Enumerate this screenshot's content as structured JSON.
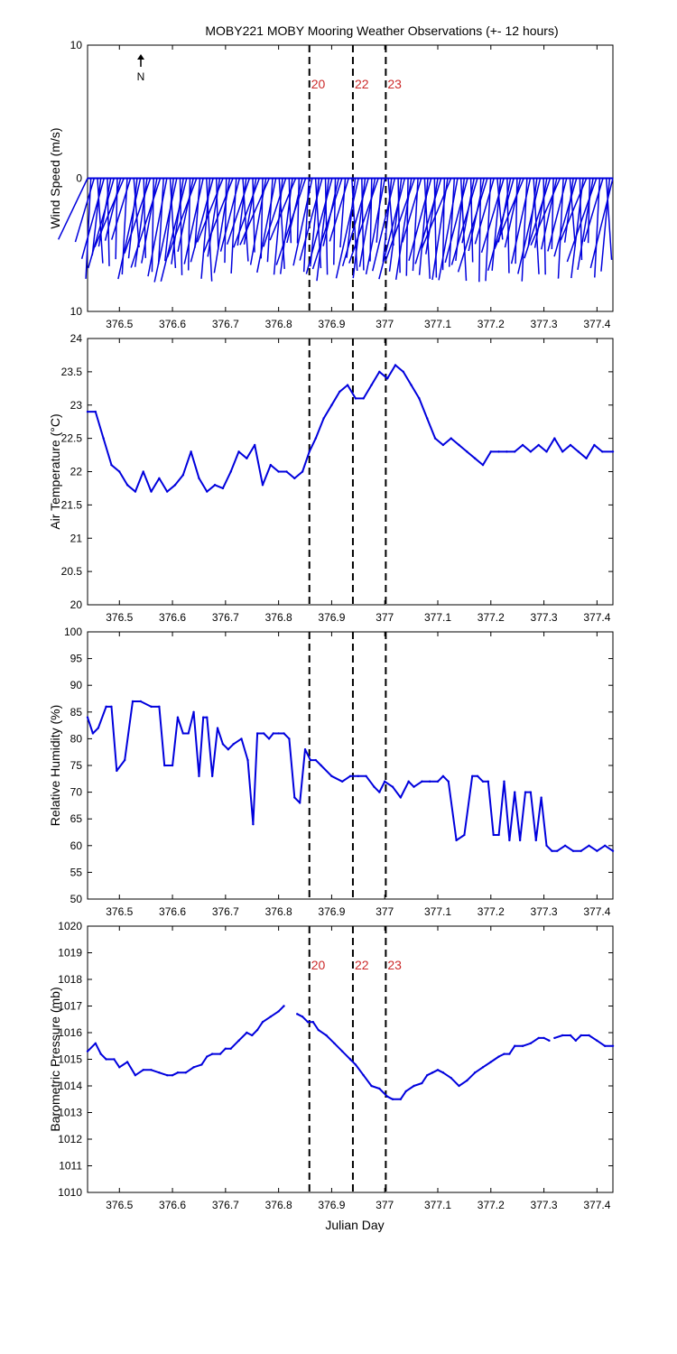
{
  "title": "MOBY221 MOBY Mooring Weather Observations (+- 12 hours)",
  "xlabel": "Julian Day",
  "north_label": "N",
  "colors": {
    "series": "#0000dd",
    "event_labels": "#cc2a2a",
    "axes": "#000000"
  },
  "x_ticks": [
    "376.5",
    "376.6",
    "376.7",
    "376.8",
    "376.9",
    "377",
    "377.1",
    "377.2",
    "377.3",
    "377.4"
  ],
  "events": [
    {
      "x": 376.858,
      "label": "20"
    },
    {
      "x": 376.94,
      "label": "22"
    },
    {
      "x": 377.002,
      "label": "23"
    }
  ],
  "chart_data": [
    {
      "type": "feather",
      "ylabel": "Wind Speed (m/s)",
      "xlim": [
        376.44,
        377.43
      ],
      "ylim": [
        -10,
        10
      ],
      "y_ticks": [
        "10",
        "0",
        "10"
      ],
      "show_event_labels": true,
      "grid": false,
      "series": [
        {
          "x0": 376.44,
          "x1": 377.43,
          "u_end": [
            -0.055,
            0.01
          ],
          "v_end": [
            -4.6,
            -7.8
          ]
        }
      ]
    },
    {
      "type": "line",
      "ylabel": "Air Temperature (°C)",
      "xlim": [
        376.44,
        377.43
      ],
      "ylim": [
        20,
        24
      ],
      "y_ticks": [
        "24",
        "23.5",
        "23",
        "22.5",
        "22",
        "21.5",
        "21",
        "20.5",
        "20"
      ],
      "show_event_labels": false,
      "grid": false,
      "series": [
        {
          "x": [
            376.44,
            376.455,
            376.47,
            376.485,
            376.5,
            376.515,
            376.53,
            376.545,
            376.56,
            376.575,
            376.59,
            376.605,
            376.62,
            376.635,
            376.65,
            376.665,
            376.68,
            376.695,
            376.71,
            376.725,
            376.74,
            376.755,
            376.77,
            376.785,
            376.8,
            376.815,
            376.83,
            376.845,
            376.858,
            376.87,
            376.885,
            376.9,
            376.915,
            376.93,
            376.945,
            376.96,
            376.975,
            376.99,
            377.005,
            377.02,
            377.035,
            377.05,
            377.065,
            377.08,
            377.095,
            377.11,
            377.125,
            377.14,
            377.155,
            377.17,
            377.185,
            377.2,
            377.215,
            377.23,
            377.245,
            377.26,
            377.275,
            377.29,
            377.305,
            377.32,
            377.335,
            377.35,
            377.365,
            377.38,
            377.395,
            377.41,
            377.43
          ],
          "y": [
            22.9,
            22.9,
            22.5,
            22.1,
            22.0,
            21.8,
            21.7,
            22.0,
            21.7,
            21.9,
            21.7,
            21.8,
            21.95,
            22.3,
            21.9,
            21.7,
            21.8,
            21.75,
            22.0,
            22.3,
            22.2,
            22.4,
            21.8,
            22.1,
            22.0,
            22.0,
            21.9,
            22.0,
            22.3,
            22.5,
            22.8,
            23.0,
            23.2,
            23.3,
            23.1,
            23.1,
            23.3,
            23.5,
            23.4,
            23.6,
            23.5,
            23.3,
            23.1,
            22.8,
            22.5,
            22.4,
            22.5,
            22.4,
            22.3,
            22.2,
            22.1,
            22.3,
            22.3,
            22.3,
            22.3,
            22.4,
            22.3,
            22.4,
            22.3,
            22.5,
            22.3,
            22.4,
            22.3,
            22.2,
            22.4,
            22.3,
            22.3
          ]
        }
      ]
    },
    {
      "type": "line",
      "ylabel": "Relative Humidity (%)",
      "xlim": [
        376.44,
        377.43
      ],
      "ylim": [
        50,
        100
      ],
      "y_ticks": [
        "100",
        "95",
        "90",
        "85",
        "80",
        "75",
        "70",
        "65",
        "60",
        "55",
        "50"
      ],
      "show_event_labels": false,
      "grid": false,
      "series": [
        {
          "x": [
            376.44,
            376.45,
            376.46,
            376.475,
            376.485,
            376.495,
            376.51,
            376.525,
            376.54,
            376.56,
            376.575,
            376.585,
            376.6,
            376.61,
            376.62,
            376.63,
            376.64,
            376.65,
            376.658,
            376.665,
            376.675,
            376.685,
            376.695,
            376.705,
            376.715,
            376.73,
            376.742,
            376.752,
            376.76,
            376.772,
            376.782,
            376.79,
            376.8,
            376.81,
            376.82,
            376.83,
            376.84,
            376.85,
            376.86,
            376.87,
            376.88,
            376.9,
            376.92,
            376.935,
            376.95,
            376.965,
            376.98,
            376.99,
            377.0,
            377.015,
            377.03,
            377.045,
            377.055,
            377.07,
            377.085,
            377.1,
            377.11,
            377.12,
            377.135,
            377.15,
            377.165,
            377.175,
            377.185,
            377.195,
            377.205,
            377.215,
            377.225,
            377.235,
            377.245,
            377.255,
            377.265,
            377.275,
            377.285,
            377.295,
            377.305,
            377.315,
            377.325,
            377.34,
            377.355,
            377.37,
            377.385,
            377.4,
            377.415,
            377.43
          ],
          "y": [
            84,
            81,
            82,
            86,
            86,
            74,
            76,
            87,
            87,
            86,
            86,
            75,
            75,
            84,
            81,
            81,
            85,
            73,
            84,
            84,
            73,
            82,
            79,
            78,
            79,
            80,
            76,
            64,
            81,
            81,
            80,
            81,
            81,
            81,
            80,
            69,
            68,
            78,
            76,
            76,
            75,
            73,
            72,
            73,
            73,
            73,
            71,
            70,
            72,
            71,
            69,
            72,
            71,
            72,
            72,
            72,
            73,
            72,
            61,
            62,
            73,
            73,
            72,
            72,
            62,
            62,
            72,
            61,
            70,
            61,
            70,
            70,
            61,
            69,
            60,
            59,
            59,
            60,
            59,
            59,
            60,
            59,
            60,
            59
          ]
        }
      ]
    },
    {
      "type": "line",
      "ylabel": "Barometric Pressure (mb)",
      "xlim": [
        376.44,
        377.43
      ],
      "ylim": [
        1010,
        1020
      ],
      "y_ticks": [
        "1020",
        "1019",
        "1018",
        "1017",
        "1016",
        "1015",
        "1014",
        "1013",
        "1012",
        "1011",
        "1010"
      ],
      "show_event_labels": true,
      "grid": false,
      "series": [
        {
          "x": [
            376.44,
            376.455,
            376.465,
            376.475,
            376.49,
            376.5,
            376.515,
            376.53,
            376.545,
            376.56,
            376.575,
            376.59,
            376.6,
            376.61,
            376.625,
            376.64,
            376.655,
            376.665,
            376.675,
            376.69,
            376.7,
            376.71,
            376.725,
            376.74,
            376.75,
            376.76,
            376.77,
            376.785,
            376.8,
            376.81
          ],
          "y": [
            1015.3,
            1015.6,
            1015.2,
            1015.0,
            1015.0,
            1014.7,
            1014.9,
            1014.4,
            1014.6,
            1014.6,
            1014.5,
            1014.4,
            1014.4,
            1014.5,
            1014.5,
            1014.7,
            1014.8,
            1015.1,
            1015.2,
            1015.2,
            1015.4,
            1015.4,
            1015.7,
            1016.0,
            1015.9,
            1016.1,
            1016.4,
            1016.6,
            1016.8,
            1017.0
          ]
        },
        {
          "x": [
            376.835,
            376.845,
            376.855,
            376.865,
            376.875,
            376.89,
            376.905,
            376.92,
            376.935,
            376.945,
            376.96,
            376.975,
            376.99,
            377.005,
            377.015,
            377.03,
            377.04,
            377.055,
            377.07,
            377.08,
            377.09,
            377.1,
            377.11,
            377.125,
            377.14,
            377.155,
            377.17,
            377.185,
            377.2,
            377.215,
            377.225,
            377.235,
            377.245,
            377.26,
            377.275,
            377.29,
            377.3,
            377.31
          ],
          "y": [
            1016.7,
            1016.6,
            1016.4,
            1016.4,
            1016.1,
            1015.9,
            1015.6,
            1015.3,
            1015.0,
            1014.8,
            1014.4,
            1014.0,
            1013.9,
            1013.6,
            1013.5,
            1013.5,
            1013.8,
            1014.0,
            1014.1,
            1014.4,
            1014.5,
            1014.6,
            1014.5,
            1014.3,
            1014.0,
            1014.2,
            1014.5,
            1014.7,
            1014.9,
            1015.1,
            1015.2,
            1015.2,
            1015.5,
            1015.5,
            1015.6,
            1015.8,
            1015.8,
            1015.7
          ]
        },
        {
          "x": [
            377.32,
            377.335,
            377.35,
            377.36,
            377.37,
            377.385,
            377.4,
            377.415,
            377.43
          ],
          "y": [
            1015.8,
            1015.9,
            1015.9,
            1015.7,
            1015.9,
            1015.9,
            1015.7,
            1015.5,
            1015.5
          ]
        }
      ]
    }
  ]
}
